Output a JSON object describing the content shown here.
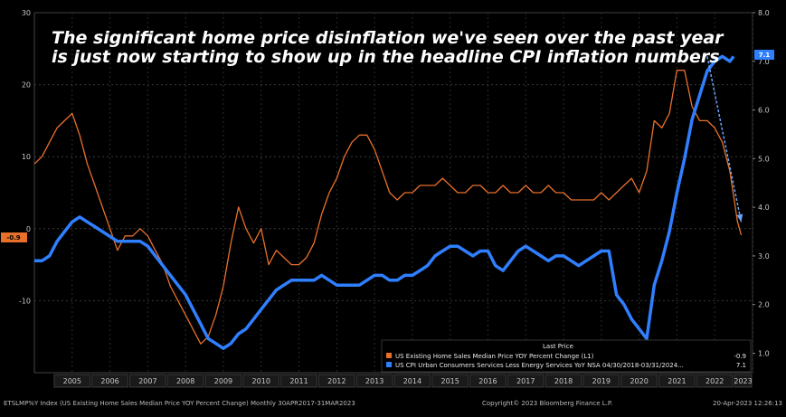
{
  "chart_data": {
    "type": "line",
    "title": "",
    "annotation_lines": [
      "The significant home price disinflation we've seen over the past year",
      "is just now starting to show up in the headline CPI inflation numbers"
    ],
    "x_axis": {
      "ticks": [
        "2005",
        "2006",
        "2007",
        "2008",
        "2009",
        "2010",
        "2011",
        "2012",
        "2013",
        "2014",
        "2015",
        "2016",
        "2017",
        "2018",
        "2019",
        "2020",
        "2021",
        "2022",
        "2023"
      ],
      "range": [
        2004.5,
        2023.5
      ]
    },
    "left_axis": {
      "ticks": [
        "30",
        "20",
        "10",
        "0",
        "-10"
      ],
      "range": [
        -20,
        30
      ]
    },
    "right_axis": {
      "ticks": [
        "8.0",
        "7.0",
        "6.0",
        "5.0",
        "4.0",
        "3.0",
        "2.0",
        "1.0"
      ],
      "range": [
        0.6,
        8.0
      ]
    },
    "series": [
      {
        "name": "US Existing Home Sales Median Price YOY Percent Change (L1)",
        "axis": "left",
        "color": "#e8702a",
        "x": [
          2004.5,
          2004.7,
          2004.9,
          2005.1,
          2005.3,
          2005.5,
          2005.7,
          2005.9,
          2006.1,
          2006.3,
          2006.5,
          2006.7,
          2006.9,
          2007.1,
          2007.3,
          2007.5,
          2007.7,
          2007.9,
          2008.1,
          2008.3,
          2008.5,
          2008.7,
          2008.9,
          2009.1,
          2009.3,
          2009.5,
          2009.7,
          2009.9,
          2010.1,
          2010.3,
          2010.5,
          2010.7,
          2010.9,
          2011.1,
          2011.3,
          2011.5,
          2011.7,
          2011.9,
          2012.1,
          2012.3,
          2012.5,
          2012.7,
          2012.9,
          2013.1,
          2013.3,
          2013.5,
          2013.7,
          2013.9,
          2014.1,
          2014.3,
          2014.5,
          2014.7,
          2014.9,
          2015.1,
          2015.3,
          2015.5,
          2015.7,
          2015.9,
          2016.1,
          2016.3,
          2016.5,
          2016.7,
          2016.9,
          2017.1,
          2017.3,
          2017.5,
          2017.7,
          2017.9,
          2018.1,
          2018.3,
          2018.5,
          2018.7,
          2018.9,
          2019.1,
          2019.3,
          2019.5,
          2019.7,
          2019.9,
          2020.1,
          2020.3,
          2020.5,
          2020.7,
          2020.9,
          2021.1,
          2021.3,
          2021.5,
          2021.7,
          2021.9,
          2022.1,
          2022.3,
          2022.5,
          2022.7,
          2022.9,
          2023.1,
          2023.2
        ],
        "values": [
          9,
          10,
          12,
          14,
          15,
          16,
          13,
          9,
          6,
          3,
          0,
          -3,
          -1,
          -1,
          0,
          -1,
          -3,
          -5,
          -8,
          -10,
          -12,
          -14,
          -16,
          -15,
          -12,
          -8,
          -2,
          3,
          0,
          -2,
          0,
          -5,
          -3,
          -4,
          -5,
          -5,
          -4,
          -2,
          2,
          5,
          7,
          10,
          12,
          13,
          13,
          11,
          8,
          5,
          4,
          5,
          5,
          6,
          6,
          6,
          7,
          6,
          5,
          5,
          6,
          6,
          5,
          5,
          6,
          5,
          5,
          6,
          5,
          5,
          6,
          5,
          5,
          4,
          4,
          4,
          4,
          5,
          4,
          5,
          6,
          7,
          5,
          8,
          15,
          14,
          16,
          22,
          22,
          17,
          15,
          15,
          14,
          12,
          8,
          1,
          -0.9
        ]
      },
      {
        "name": "US CPI Urban Consumers Services Less Energy Services YoY NSA 04/30/2018-03/31/2024...",
        "axis": "right",
        "color": "#2f7fff",
        "x": [
          2004.5,
          2004.7,
          2004.9,
          2005.1,
          2005.3,
          2005.5,
          2005.7,
          2005.9,
          2006.1,
          2006.3,
          2006.5,
          2006.7,
          2006.9,
          2007.1,
          2007.3,
          2007.5,
          2007.7,
          2007.9,
          2008.1,
          2008.3,
          2008.5,
          2008.7,
          2008.9,
          2009.1,
          2009.3,
          2009.5,
          2009.7,
          2009.9,
          2010.1,
          2010.3,
          2010.5,
          2010.7,
          2010.9,
          2011.1,
          2011.3,
          2011.5,
          2011.7,
          2011.9,
          2012.1,
          2012.3,
          2012.5,
          2012.7,
          2012.9,
          2013.1,
          2013.3,
          2013.5,
          2013.7,
          2013.9,
          2014.1,
          2014.3,
          2014.5,
          2014.7,
          2014.9,
          2015.1,
          2015.3,
          2015.5,
          2015.7,
          2015.9,
          2016.1,
          2016.3,
          2016.5,
          2016.7,
          2016.9,
          2017.1,
          2017.3,
          2017.5,
          2017.7,
          2017.9,
          2018.1,
          2018.3,
          2018.5,
          2018.7,
          2018.9,
          2019.1,
          2019.3,
          2019.5,
          2019.7,
          2019.9,
          2020.1,
          2020.3,
          2020.5,
          2020.7,
          2020.9,
          2021.1,
          2021.3,
          2021.5,
          2021.7,
          2021.9,
          2022.1,
          2022.3,
          2022.5,
          2022.7,
          2022.9,
          2023.0
        ],
        "values": [
          2.9,
          2.9,
          3.0,
          3.3,
          3.5,
          3.7,
          3.8,
          3.7,
          3.6,
          3.5,
          3.4,
          3.3,
          3.3,
          3.3,
          3.3,
          3.2,
          3.0,
          2.8,
          2.6,
          2.4,
          2.2,
          1.9,
          1.6,
          1.3,
          1.2,
          1.1,
          1.2,
          1.4,
          1.5,
          1.7,
          1.9,
          2.1,
          2.3,
          2.4,
          2.5,
          2.5,
          2.5,
          2.5,
          2.6,
          2.5,
          2.4,
          2.4,
          2.4,
          2.4,
          2.5,
          2.6,
          2.6,
          2.5,
          2.5,
          2.6,
          2.6,
          2.7,
          2.8,
          3.0,
          3.1,
          3.2,
          3.2,
          3.1,
          3.0,
          3.1,
          3.1,
          2.8,
          2.7,
          2.9,
          3.1,
          3.2,
          3.1,
          3.0,
          2.9,
          3.0,
          3.0,
          2.9,
          2.8,
          2.9,
          3.0,
          3.1,
          3.1,
          2.2,
          2.0,
          1.7,
          1.5,
          1.3,
          2.4,
          2.9,
          3.5,
          4.3,
          5.0,
          5.8,
          6.3,
          6.8,
          7.0,
          7.1,
          7.0,
          7.1
        ]
      }
    ],
    "trend_arrow": {
      "from": [
        2022.3,
        7.1
      ],
      "to": [
        2023.2,
        3.7
      ]
    },
    "legend": {
      "position": "bottom-right",
      "header": "Last Price",
      "items": [
        {
          "label": "US Existing Home Sales Median Price YOY Percent Change  (L1)",
          "value": "-0.9",
          "color": "#e8702a"
        },
        {
          "label": "US CPI Urban Consumers Services Less Energy Services YoY NSA 04/30/2018-03/31/2024...",
          "value": "7.1",
          "color": "#2f7fff"
        }
      ]
    },
    "badges": {
      "left": "-0.9",
      "right": "7.1"
    },
    "grid": true
  },
  "footer": {
    "left": "ETSLMP%Y Index (US Existing Home Sales Median Price YOY Percent Change)  Monthly 30APR2017-31MAR2023",
    "center": "Copyright© 2023 Bloomberg Finance L.P.",
    "right": "20-Apr-2023 12:26:13"
  }
}
